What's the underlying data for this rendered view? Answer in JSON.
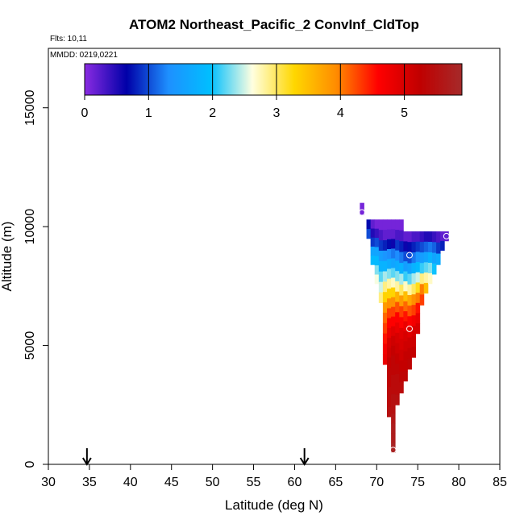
{
  "chart_data": {
    "type": "heatmap",
    "title": "ATOM2 Northeast_Pacific_2 ConvInf_CldTop",
    "annotations": [
      "Flts: 10,11",
      "MMDD: 0219,0221"
    ],
    "xlabel": "Latitude (deg N)",
    "ylabel": "Altitude (m)",
    "xlim": [
      30,
      85
    ],
    "ylim": [
      0,
      17500
    ],
    "xticks": [
      30,
      35,
      40,
      45,
      50,
      55,
      60,
      65,
      70,
      75,
      80,
      85
    ],
    "yticks": [
      0,
      5000,
      10000,
      15000
    ],
    "grid": false,
    "colorbar": {
      "range": [
        0,
        5.9
      ],
      "ticks": [
        0,
        1,
        2,
        3,
        4,
        5
      ],
      "colors": [
        "#8a2be2",
        "#0000a8",
        "#1e90ff",
        "#00bfff",
        "#ffffe0",
        "#ffd700",
        "#ff8c00",
        "#ff0000",
        "#c00000",
        "#a52a2a"
      ]
    },
    "flight_markers_lat": [
      34.7,
      61.2
    ],
    "profiles": [
      {
        "lat": 68.2,
        "top": 11000,
        "bottom": 10500,
        "values": [
          0.1
        ]
      },
      {
        "lat": 69.0,
        "top": 10300,
        "bottom": 9500,
        "values": [
          0.7,
          1.0
        ]
      },
      {
        "lat": 69.5,
        "top": 10300,
        "bottom": 8400,
        "values": [
          0.2,
          0.5,
          0.9,
          1.6,
          1.9
        ]
      },
      {
        "lat": 70.0,
        "top": 10300,
        "bottom": 7600,
        "values": [
          0.1,
          0.4,
          1.0,
          1.6,
          1.9,
          2.3,
          2.6
        ]
      },
      {
        "lat": 70.5,
        "top": 10300,
        "bottom": 6800,
        "values": [
          0.1,
          0.3,
          0.9,
          1.5,
          1.8,
          2.2,
          2.5,
          2.9
        ]
      },
      {
        "lat": 71.0,
        "top": 10300,
        "bottom": 4200,
        "values": [
          0.1,
          0.2,
          0.8,
          1.4,
          1.8,
          2.4,
          2.9,
          3.3,
          3.8,
          4.1,
          4.3,
          4.5,
          4.7,
          4.8
        ]
      },
      {
        "lat": 71.5,
        "top": 10300,
        "bottom": 2000,
        "values": [
          0.1,
          0.2,
          0.7,
          1.3,
          1.7,
          2.3,
          2.8,
          3.3,
          3.9,
          4.3,
          4.6,
          4.8,
          5.0,
          5.1,
          5.2,
          5.3,
          5.3,
          5.4,
          5.4,
          5.5
        ]
      },
      {
        "lat": 72.0,
        "top": 10300,
        "bottom": 500,
        "values": [
          0.1,
          0.2,
          0.6,
          1.2,
          1.6,
          2.2,
          2.7,
          3.3,
          3.9,
          4.3,
          4.6,
          4.9,
          5.1,
          5.2,
          5.3,
          5.3,
          5.4,
          5.4,
          5.5,
          5.5,
          5.6,
          5.7,
          5.7,
          5.8
        ]
      },
      {
        "lat": 72.5,
        "top": 10300,
        "bottom": 2500,
        "values": [
          0.1,
          0.3,
          0.9,
          1.3,
          1.7,
          2.3,
          2.8,
          3.6,
          4.2,
          4.6,
          4.8,
          5.0,
          5.1,
          5.2,
          5.3,
          5.4,
          5.4,
          5.5
        ]
      },
      {
        "lat": 73.0,
        "top": 10300,
        "bottom": 3000,
        "values": [
          0.1,
          0.3,
          0.8,
          1.2,
          1.8,
          2.4,
          3.0,
          3.8,
          4.3,
          4.6,
          4.9,
          5.0,
          5.1,
          5.2,
          5.3,
          5.4
        ]
      },
      {
        "lat": 73.5,
        "top": 9800,
        "bottom": 3500,
        "values": [
          0.2,
          0.6,
          1.0,
          1.5,
          2.1,
          2.7,
          3.5,
          4.1,
          4.5,
          4.8,
          5.0,
          5.1,
          5.2,
          5.2,
          5.3
        ]
      },
      {
        "lat": 74.0,
        "top": 9800,
        "bottom": 4000,
        "values": [
          0.2,
          0.7,
          1.0,
          1.6,
          2.2,
          2.8,
          3.7,
          4.2,
          4.6,
          4.9,
          5.1,
          5.2,
          5.3
        ]
      },
      {
        "lat": 74.5,
        "top": 9800,
        "bottom": 4500,
        "values": [
          0.3,
          0.8,
          1.2,
          1.8,
          2.4,
          3.0,
          3.9,
          4.3,
          4.7,
          5.0,
          5.1,
          5.2
        ]
      },
      {
        "lat": 75.0,
        "top": 9800,
        "bottom": 5500,
        "values": [
          0.3,
          0.9,
          1.4,
          1.9,
          2.5,
          3.2,
          4.0,
          4.5,
          4.8,
          5.0
        ]
      },
      {
        "lat": 75.5,
        "top": 9800,
        "bottom": 6700,
        "values": [
          0.4,
          1.0,
          1.5,
          2.1,
          2.9,
          4.0,
          4.3
        ]
      },
      {
        "lat": 76.0,
        "top": 9800,
        "bottom": 7200,
        "values": [
          0.5,
          1.1,
          1.6,
          2.2,
          2.8,
          3.5
        ]
      },
      {
        "lat": 76.5,
        "top": 9800,
        "bottom": 7600,
        "values": [
          0.5,
          1.2,
          1.8,
          2.3,
          2.7
        ]
      },
      {
        "lat": 77.0,
        "top": 9800,
        "bottom": 8000,
        "values": [
          0.4,
          1.1,
          1.6,
          2.0
        ]
      },
      {
        "lat": 77.5,
        "top": 9800,
        "bottom": 8400,
        "values": [
          0.3,
          0.9,
          1.7
        ]
      },
      {
        "lat": 78.0,
        "top": 9800,
        "bottom": 9000,
        "values": [
          0.2,
          0.8
        ]
      },
      {
        "lat": 78.5,
        "top": 9800,
        "bottom": 9400,
        "values": [
          0.2
        ]
      }
    ],
    "median_points": [
      {
        "lat": 68.2,
        "alt": 10600
      },
      {
        "lat": 74.0,
        "alt": 8800
      },
      {
        "lat": 78.5,
        "alt": 9600
      },
      {
        "lat": 74.0,
        "alt": 5700
      },
      {
        "lat": 72.0,
        "alt": 600
      }
    ]
  }
}
